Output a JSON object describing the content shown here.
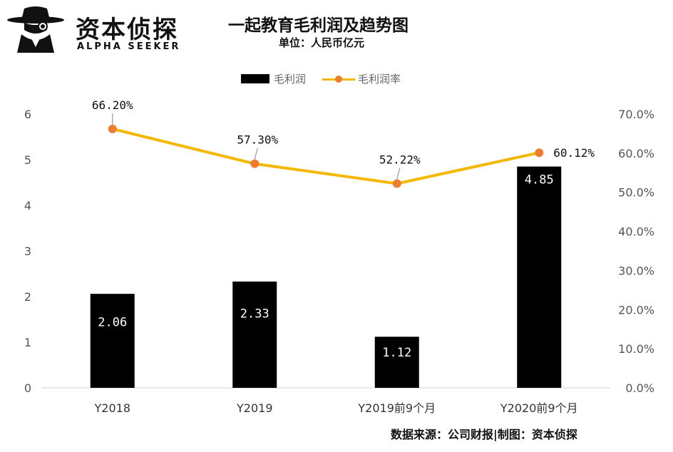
{
  "branding": {
    "name_cn": "资本侦探",
    "name_en": "ALPHA SEEKER"
  },
  "title": "一起教育毛利润及趋势图",
  "subtitle": "单位：人民币亿元",
  "source": "数据来源：公司财报|制图：资本侦探",
  "colors": {
    "bar": "#000000",
    "line": "#F5B800",
    "marker": "#ED7D31",
    "leader": "#999999"
  },
  "chart_data": {
    "type": "bar",
    "categories": [
      "Y2018",
      "Y2019",
      "Y2019前9个月",
      "Y2020前9个月"
    ],
    "series": [
      {
        "name": "毛利润",
        "type": "bar",
        "axis": "left",
        "values": [
          2.06,
          2.33,
          1.12,
          4.85
        ],
        "labels": [
          "2.06",
          "2.33",
          "1.12",
          "4.85"
        ]
      },
      {
        "name": "毛利润率",
        "type": "line",
        "axis": "right",
        "values": [
          66.2,
          57.3,
          52.22,
          60.12
        ],
        "labels": [
          "66.20%",
          "57.30%",
          "52.22%",
          "60.12%"
        ]
      }
    ],
    "y_left": {
      "min": 0,
      "max": 6,
      "ticks": [
        "0",
        "1",
        "2",
        "3",
        "4",
        "5",
        "6"
      ]
    },
    "y_right": {
      "min": 0,
      "max": 70,
      "ticks": [
        "0.0%",
        "10.0%",
        "20.0%",
        "30.0%",
        "40.0%",
        "50.0%",
        "60.0%",
        "70.0%"
      ]
    },
    "legend_position": "top-center",
    "grid": false
  }
}
